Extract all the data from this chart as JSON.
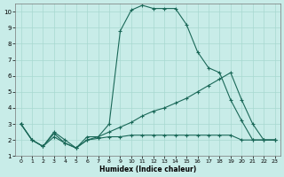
{
  "xlabel": "Humidex (Indice chaleur)",
  "background_color": "#c8ece8",
  "grid_color": "#a8d8d0",
  "line_color": "#1a6858",
  "xlim": [
    -0.5,
    23.5
  ],
  "ylim": [
    1,
    10.5
  ],
  "xticks": [
    0,
    1,
    2,
    3,
    4,
    5,
    6,
    7,
    8,
    9,
    10,
    11,
    12,
    13,
    14,
    15,
    16,
    17,
    18,
    19,
    20,
    21,
    22,
    23
  ],
  "yticks": [
    1,
    2,
    3,
    4,
    5,
    6,
    7,
    8,
    9,
    10
  ],
  "line1_x": [
    0,
    1,
    2,
    3,
    4,
    5,
    6,
    7,
    8,
    9,
    10,
    11,
    12,
    13,
    14,
    15,
    16,
    17,
    18,
    19,
    20,
    21,
    22,
    23
  ],
  "line1_y": [
    3.0,
    2.0,
    1.6,
    2.5,
    2.0,
    1.5,
    2.2,
    2.2,
    3.0,
    8.8,
    10.1,
    10.4,
    10.2,
    10.2,
    10.2,
    9.2,
    7.5,
    6.5,
    6.2,
    4.5,
    3.2,
    2.0,
    2.0,
    2.0
  ],
  "line2_x": [
    0,
    1,
    2,
    3,
    4,
    5,
    6,
    7,
    8,
    9,
    10,
    11,
    12,
    13,
    14,
    15,
    16,
    17,
    18,
    19,
    20,
    21,
    22,
    23
  ],
  "line2_y": [
    3.0,
    2.0,
    1.6,
    2.4,
    1.8,
    1.5,
    2.0,
    2.2,
    2.5,
    2.8,
    3.1,
    3.5,
    3.8,
    4.0,
    4.3,
    4.6,
    5.0,
    5.4,
    5.8,
    6.2,
    4.5,
    3.0,
    2.0,
    2.0
  ],
  "line3_x": [
    0,
    1,
    2,
    3,
    4,
    5,
    6,
    7,
    8,
    9,
    10,
    11,
    12,
    13,
    14,
    15,
    16,
    17,
    18,
    19,
    20,
    21,
    22,
    23
  ],
  "line3_y": [
    3.0,
    2.0,
    1.6,
    2.2,
    1.8,
    1.5,
    2.0,
    2.1,
    2.2,
    2.2,
    2.3,
    2.3,
    2.3,
    2.3,
    2.3,
    2.3,
    2.3,
    2.3,
    2.3,
    2.3,
    2.0,
    2.0,
    2.0,
    2.0
  ]
}
